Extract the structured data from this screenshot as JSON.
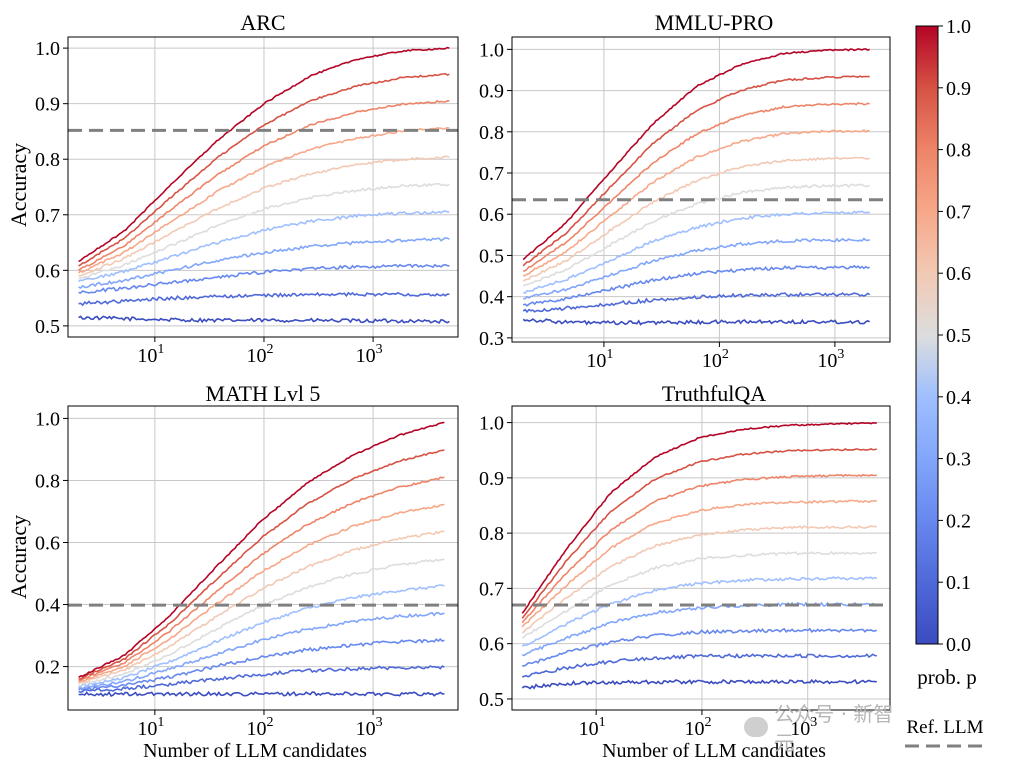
{
  "figure": {
    "colorbar": {
      "label": "prob. p",
      "ticks": [
        "0.0",
        "0.1",
        "0.2",
        "0.3",
        "0.4",
        "0.5",
        "0.6",
        "0.7",
        "0.8",
        "0.9",
        "1.0"
      ],
      "colormap": "coolwarm",
      "low_color": "#3b4cc0",
      "mid_color": "#dddddd",
      "high_color": "#b40426"
    },
    "legend": {
      "ref_label": "Ref. LLM",
      "ref_color": "#808080",
      "ref_style": "dashed"
    },
    "watermark": {
      "text": "公众号 · 新智元",
      "icon": "wechat-icon"
    }
  },
  "chart_data": [
    {
      "type": "line",
      "title": "ARC",
      "xlabel": "",
      "ylabel": "Accuracy",
      "xscale": "log",
      "xlim": [
        1.6,
        6000
      ],
      "ylim": [
        0.48,
        1.02
      ],
      "x_ticks": [
        {
          "value": 10,
          "base": "10",
          "exp": "1"
        },
        {
          "value": 100,
          "base": "10",
          "exp": "2"
        },
        {
          "value": 1000,
          "base": "10",
          "exp": "3"
        }
      ],
      "y_ticks": [
        "0.5",
        "0.6",
        "0.7",
        "0.8",
        "0.9",
        "1.0"
      ],
      "grid": true,
      "x_range": [
        2,
        5000
      ],
      "reference_llm": 0.852,
      "series": [
        {
          "p": 0.0,
          "values": [
            0.515,
            0.513,
            0.511,
            0.51,
            0.51,
            0.51,
            0.509,
            0.509,
            0.508
          ]
        },
        {
          "p": 0.1,
          "values": [
            0.54,
            0.545,
            0.55,
            0.553,
            0.555,
            0.556,
            0.557,
            0.557,
            0.557
          ]
        },
        {
          "p": 0.2,
          "values": [
            0.56,
            0.568,
            0.578,
            0.588,
            0.597,
            0.603,
            0.606,
            0.608,
            0.608
          ]
        },
        {
          "p": 0.3,
          "values": [
            0.57,
            0.582,
            0.6,
            0.618,
            0.632,
            0.643,
            0.65,
            0.654,
            0.656
          ]
        },
        {
          "p": 0.4,
          "values": [
            0.58,
            0.598,
            0.624,
            0.65,
            0.672,
            0.688,
            0.698,
            0.703,
            0.705
          ]
        },
        {
          "p": 0.5,
          "values": [
            0.585,
            0.61,
            0.645,
            0.68,
            0.71,
            0.731,
            0.744,
            0.752,
            0.755
          ]
        },
        {
          "p": 0.6,
          "values": [
            0.59,
            0.622,
            0.667,
            0.711,
            0.748,
            0.774,
            0.79,
            0.8,
            0.804
          ]
        },
        {
          "p": 0.7,
          "values": [
            0.595,
            0.633,
            0.688,
            0.742,
            0.786,
            0.818,
            0.838,
            0.851,
            0.856
          ]
        },
        {
          "p": 0.8,
          "values": [
            0.6,
            0.645,
            0.71,
            0.772,
            0.824,
            0.862,
            0.885,
            0.899,
            0.905
          ]
        },
        {
          "p": 0.9,
          "values": [
            0.608,
            0.658,
            0.732,
            0.803,
            0.862,
            0.905,
            0.932,
            0.947,
            0.953
          ]
        },
        {
          "p": 1.0,
          "values": [
            0.616,
            0.672,
            0.755,
            0.834,
            0.9,
            0.95,
            0.98,
            0.995,
            1.0
          ]
        }
      ]
    },
    {
      "type": "line",
      "title": "MMLU-PRO",
      "xlabel": "",
      "ylabel": "",
      "xscale": "log",
      "xlim": [
        1.6,
        3000
      ],
      "ylim": [
        0.29,
        1.03
      ],
      "x_ticks": [
        {
          "value": 10,
          "base": "10",
          "exp": "1"
        },
        {
          "value": 100,
          "base": "10",
          "exp": "2"
        },
        {
          "value": 1000,
          "base": "10",
          "exp": "3"
        }
      ],
      "y_ticks": [
        "0.3",
        "0.4",
        "0.5",
        "0.6",
        "0.7",
        "0.8",
        "0.9",
        "1.0"
      ],
      "grid": true,
      "x_range": [
        2,
        2000
      ],
      "reference_llm": 0.635,
      "series": [
        {
          "p": 0.0,
          "values": [
            0.345,
            0.338,
            0.336,
            0.337,
            0.338,
            0.339,
            0.339,
            0.339,
            0.339
          ]
        },
        {
          "p": 0.1,
          "values": [
            0.365,
            0.372,
            0.382,
            0.392,
            0.399,
            0.403,
            0.405,
            0.405,
            0.405
          ]
        },
        {
          "p": 0.2,
          "values": [
            0.38,
            0.395,
            0.418,
            0.44,
            0.456,
            0.465,
            0.47,
            0.471,
            0.471
          ]
        },
        {
          "p": 0.3,
          "values": [
            0.395,
            0.418,
            0.452,
            0.487,
            0.512,
            0.527,
            0.535,
            0.537,
            0.538
          ]
        },
        {
          "p": 0.4,
          "values": [
            0.41,
            0.442,
            0.488,
            0.535,
            0.568,
            0.59,
            0.6,
            0.603,
            0.604
          ]
        },
        {
          "p": 0.5,
          "values": [
            0.425,
            0.466,
            0.525,
            0.583,
            0.625,
            0.652,
            0.665,
            0.669,
            0.67
          ]
        },
        {
          "p": 0.6,
          "values": [
            0.438,
            0.488,
            0.56,
            0.63,
            0.682,
            0.714,
            0.73,
            0.735,
            0.736
          ]
        },
        {
          "p": 0.7,
          "values": [
            0.45,
            0.51,
            0.595,
            0.678,
            0.738,
            0.776,
            0.795,
            0.801,
            0.802
          ]
        },
        {
          "p": 0.8,
          "values": [
            0.462,
            0.532,
            0.63,
            0.725,
            0.795,
            0.838,
            0.86,
            0.867,
            0.868
          ]
        },
        {
          "p": 0.9,
          "values": [
            0.475,
            0.555,
            0.665,
            0.772,
            0.852,
            0.9,
            0.925,
            0.932,
            0.934
          ]
        },
        {
          "p": 1.0,
          "values": [
            0.49,
            0.58,
            0.702,
            0.82,
            0.91,
            0.962,
            0.99,
            0.998,
            1.0
          ]
        }
      ]
    },
    {
      "type": "line",
      "title": "MATH Lvl 5",
      "xlabel": "Number of LLM candidates",
      "ylabel": "Accuracy",
      "xscale": "log",
      "xlim": [
        1.6,
        6000
      ],
      "ylim": [
        0.06,
        1.04
      ],
      "x_ticks": [
        {
          "value": 10,
          "base": "10",
          "exp": "1"
        },
        {
          "value": 100,
          "base": "10",
          "exp": "2"
        },
        {
          "value": 1000,
          "base": "10",
          "exp": "3"
        }
      ],
      "y_ticks": [
        "0.2",
        "0.4",
        "0.6",
        "0.8",
        "1.0"
      ],
      "grid": true,
      "x_range": [
        2,
        4500
      ],
      "reference_llm": 0.398,
      "series": [
        {
          "p": 0.0,
          "values": [
            0.11,
            0.111,
            0.112,
            0.112,
            0.112,
            0.112,
            0.112,
            0.112,
            0.112
          ]
        },
        {
          "p": 0.1,
          "values": [
            0.12,
            0.128,
            0.143,
            0.16,
            0.175,
            0.186,
            0.193,
            0.197,
            0.198
          ]
        },
        {
          "p": 0.2,
          "values": [
            0.125,
            0.14,
            0.167,
            0.2,
            0.231,
            0.254,
            0.27,
            0.28,
            0.285
          ]
        },
        {
          "p": 0.3,
          "values": [
            0.13,
            0.152,
            0.192,
            0.24,
            0.285,
            0.32,
            0.345,
            0.362,
            0.372
          ]
        },
        {
          "p": 0.4,
          "values": [
            0.135,
            0.164,
            0.216,
            0.28,
            0.34,
            0.388,
            0.422,
            0.445,
            0.46
          ]
        },
        {
          "p": 0.5,
          "values": [
            0.14,
            0.176,
            0.24,
            0.32,
            0.395,
            0.455,
            0.498,
            0.528,
            0.547
          ]
        },
        {
          "p": 0.6,
          "values": [
            0.145,
            0.188,
            0.265,
            0.36,
            0.45,
            0.522,
            0.575,
            0.612,
            0.635
          ]
        },
        {
          "p": 0.7,
          "values": [
            0.15,
            0.2,
            0.29,
            0.4,
            0.505,
            0.59,
            0.652,
            0.695,
            0.722
          ]
        },
        {
          "p": 0.8,
          "values": [
            0.155,
            0.212,
            0.315,
            0.44,
            0.56,
            0.658,
            0.728,
            0.778,
            0.81
          ]
        },
        {
          "p": 0.9,
          "values": [
            0.16,
            0.224,
            0.34,
            0.48,
            0.615,
            0.725,
            0.805,
            0.862,
            0.898
          ]
        },
        {
          "p": 1.0,
          "values": [
            0.165,
            0.236,
            0.365,
            0.52,
            0.67,
            0.792,
            0.882,
            0.945,
            0.987
          ]
        }
      ]
    },
    {
      "type": "line",
      "title": "TruthfulQA",
      "xlabel": "Number of LLM candidates",
      "ylabel": "",
      "xscale": "log",
      "xlim": [
        1.6,
        6000
      ],
      "ylim": [
        0.48,
        1.03
      ],
      "x_ticks": [
        {
          "value": 10,
          "base": "10",
          "exp": "1"
        },
        {
          "value": 100,
          "base": "10",
          "exp": "2"
        },
        {
          "value": 1000,
          "base": "10",
          "exp": "3"
        }
      ],
      "y_ticks": [
        "0.5",
        "0.6",
        "0.7",
        "0.8",
        "0.9",
        "1.0"
      ],
      "grid": true,
      "x_range": [
        2,
        4500
      ],
      "reference_llm": 0.67,
      "series": [
        {
          "p": 0.0,
          "values": [
            0.52,
            0.528,
            0.53,
            0.531,
            0.531,
            0.531,
            0.531,
            0.531,
            0.531
          ]
        },
        {
          "p": 0.1,
          "values": [
            0.54,
            0.556,
            0.568,
            0.574,
            0.577,
            0.578,
            0.578,
            0.578,
            0.578
          ]
        },
        {
          "p": 0.2,
          "values": [
            0.56,
            0.584,
            0.603,
            0.615,
            0.621,
            0.623,
            0.624,
            0.624,
            0.624
          ]
        },
        {
          "p": 0.3,
          "values": [
            0.58,
            0.61,
            0.638,
            0.656,
            0.665,
            0.669,
            0.671,
            0.671,
            0.671
          ]
        },
        {
          "p": 0.4,
          "values": [
            0.595,
            0.636,
            0.672,
            0.697,
            0.709,
            0.715,
            0.717,
            0.718,
            0.718
          ]
        },
        {
          "p": 0.5,
          "values": [
            0.61,
            0.66,
            0.706,
            0.737,
            0.753,
            0.76,
            0.763,
            0.764,
            0.764
          ]
        },
        {
          "p": 0.6,
          "values": [
            0.62,
            0.683,
            0.74,
            0.777,
            0.797,
            0.806,
            0.81,
            0.811,
            0.811
          ]
        },
        {
          "p": 0.7,
          "values": [
            0.63,
            0.706,
            0.773,
            0.818,
            0.841,
            0.852,
            0.856,
            0.857,
            0.858
          ]
        },
        {
          "p": 0.8,
          "values": [
            0.638,
            0.728,
            0.806,
            0.858,
            0.885,
            0.897,
            0.902,
            0.904,
            0.905
          ]
        },
        {
          "p": 0.9,
          "values": [
            0.646,
            0.75,
            0.84,
            0.898,
            0.929,
            0.943,
            0.949,
            0.951,
            0.952
          ]
        },
        {
          "p": 1.0,
          "values": [
            0.655,
            0.772,
            0.873,
            0.938,
            0.973,
            0.988,
            0.995,
            0.998,
            0.999
          ]
        }
      ]
    }
  ]
}
